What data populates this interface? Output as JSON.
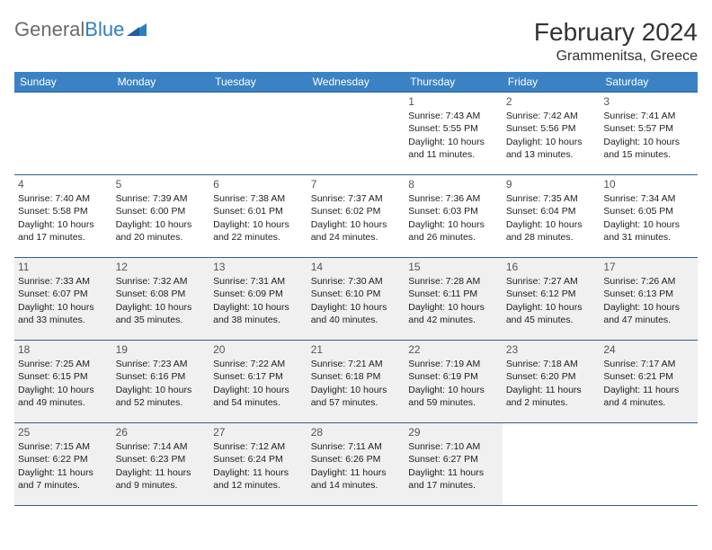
{
  "logo": {
    "text1": "General",
    "text2": "Blue"
  },
  "title": "February 2024",
  "location": "Grammenitsa, Greece",
  "colors": {
    "header_bg": "#3b82c4",
    "header_text": "#ffffff",
    "border": "#2f5f8f",
    "shaded_bg": "#f0f0f0",
    "text": "#222222",
    "logo_gray": "#6b6b6b",
    "logo_blue": "#2f7fbf"
  },
  "weekdays": [
    "Sunday",
    "Monday",
    "Tuesday",
    "Wednesday",
    "Thursday",
    "Friday",
    "Saturday"
  ],
  "weeks": [
    [
      {
        "blank": true
      },
      {
        "blank": true
      },
      {
        "blank": true
      },
      {
        "blank": true
      },
      {
        "day": "1",
        "sunrise": "Sunrise: 7:43 AM",
        "sunset": "Sunset: 5:55 PM",
        "d1": "Daylight: 10 hours",
        "d2": "and 11 minutes."
      },
      {
        "day": "2",
        "sunrise": "Sunrise: 7:42 AM",
        "sunset": "Sunset: 5:56 PM",
        "d1": "Daylight: 10 hours",
        "d2": "and 13 minutes."
      },
      {
        "day": "3",
        "sunrise": "Sunrise: 7:41 AM",
        "sunset": "Sunset: 5:57 PM",
        "d1": "Daylight: 10 hours",
        "d2": "and 15 minutes."
      }
    ],
    [
      {
        "day": "4",
        "sunrise": "Sunrise: 7:40 AM",
        "sunset": "Sunset: 5:58 PM",
        "d1": "Daylight: 10 hours",
        "d2": "and 17 minutes."
      },
      {
        "day": "5",
        "sunrise": "Sunrise: 7:39 AM",
        "sunset": "Sunset: 6:00 PM",
        "d1": "Daylight: 10 hours",
        "d2": "and 20 minutes."
      },
      {
        "day": "6",
        "sunrise": "Sunrise: 7:38 AM",
        "sunset": "Sunset: 6:01 PM",
        "d1": "Daylight: 10 hours",
        "d2": "and 22 minutes."
      },
      {
        "day": "7",
        "sunrise": "Sunrise: 7:37 AM",
        "sunset": "Sunset: 6:02 PM",
        "d1": "Daylight: 10 hours",
        "d2": "and 24 minutes."
      },
      {
        "day": "8",
        "sunrise": "Sunrise: 7:36 AM",
        "sunset": "Sunset: 6:03 PM",
        "d1": "Daylight: 10 hours",
        "d2": "and 26 minutes."
      },
      {
        "day": "9",
        "sunrise": "Sunrise: 7:35 AM",
        "sunset": "Sunset: 6:04 PM",
        "d1": "Daylight: 10 hours",
        "d2": "and 28 minutes."
      },
      {
        "day": "10",
        "sunrise": "Sunrise: 7:34 AM",
        "sunset": "Sunset: 6:05 PM",
        "d1": "Daylight: 10 hours",
        "d2": "and 31 minutes."
      }
    ],
    [
      {
        "day": "11",
        "shaded": true,
        "sunrise": "Sunrise: 7:33 AM",
        "sunset": "Sunset: 6:07 PM",
        "d1": "Daylight: 10 hours",
        "d2": "and 33 minutes."
      },
      {
        "day": "12",
        "shaded": true,
        "sunrise": "Sunrise: 7:32 AM",
        "sunset": "Sunset: 6:08 PM",
        "d1": "Daylight: 10 hours",
        "d2": "and 35 minutes."
      },
      {
        "day": "13",
        "shaded": true,
        "sunrise": "Sunrise: 7:31 AM",
        "sunset": "Sunset: 6:09 PM",
        "d1": "Daylight: 10 hours",
        "d2": "and 38 minutes."
      },
      {
        "day": "14",
        "shaded": true,
        "sunrise": "Sunrise: 7:30 AM",
        "sunset": "Sunset: 6:10 PM",
        "d1": "Daylight: 10 hours",
        "d2": "and 40 minutes."
      },
      {
        "day": "15",
        "shaded": true,
        "sunrise": "Sunrise: 7:28 AM",
        "sunset": "Sunset: 6:11 PM",
        "d1": "Daylight: 10 hours",
        "d2": "and 42 minutes."
      },
      {
        "day": "16",
        "shaded": true,
        "sunrise": "Sunrise: 7:27 AM",
        "sunset": "Sunset: 6:12 PM",
        "d1": "Daylight: 10 hours",
        "d2": "and 45 minutes."
      },
      {
        "day": "17",
        "shaded": true,
        "sunrise": "Sunrise: 7:26 AM",
        "sunset": "Sunset: 6:13 PM",
        "d1": "Daylight: 10 hours",
        "d2": "and 47 minutes."
      }
    ],
    [
      {
        "day": "18",
        "shaded": true,
        "sunrise": "Sunrise: 7:25 AM",
        "sunset": "Sunset: 6:15 PM",
        "d1": "Daylight: 10 hours",
        "d2": "and 49 minutes."
      },
      {
        "day": "19",
        "shaded": true,
        "sunrise": "Sunrise: 7:23 AM",
        "sunset": "Sunset: 6:16 PM",
        "d1": "Daylight: 10 hours",
        "d2": "and 52 minutes."
      },
      {
        "day": "20",
        "shaded": true,
        "sunrise": "Sunrise: 7:22 AM",
        "sunset": "Sunset: 6:17 PM",
        "d1": "Daylight: 10 hours",
        "d2": "and 54 minutes."
      },
      {
        "day": "21",
        "shaded": true,
        "sunrise": "Sunrise: 7:21 AM",
        "sunset": "Sunset: 6:18 PM",
        "d1": "Daylight: 10 hours",
        "d2": "and 57 minutes."
      },
      {
        "day": "22",
        "shaded": true,
        "sunrise": "Sunrise: 7:19 AM",
        "sunset": "Sunset: 6:19 PM",
        "d1": "Daylight: 10 hours",
        "d2": "and 59 minutes."
      },
      {
        "day": "23",
        "shaded": true,
        "sunrise": "Sunrise: 7:18 AM",
        "sunset": "Sunset: 6:20 PM",
        "d1": "Daylight: 11 hours",
        "d2": "and 2 minutes."
      },
      {
        "day": "24",
        "shaded": true,
        "sunrise": "Sunrise: 7:17 AM",
        "sunset": "Sunset: 6:21 PM",
        "d1": "Daylight: 11 hours",
        "d2": "and 4 minutes."
      }
    ],
    [
      {
        "day": "25",
        "shaded": true,
        "sunrise": "Sunrise: 7:15 AM",
        "sunset": "Sunset: 6:22 PM",
        "d1": "Daylight: 11 hours",
        "d2": "and 7 minutes."
      },
      {
        "day": "26",
        "shaded": true,
        "sunrise": "Sunrise: 7:14 AM",
        "sunset": "Sunset: 6:23 PM",
        "d1": "Daylight: 11 hours",
        "d2": "and 9 minutes."
      },
      {
        "day": "27",
        "shaded": true,
        "sunrise": "Sunrise: 7:12 AM",
        "sunset": "Sunset: 6:24 PM",
        "d1": "Daylight: 11 hours",
        "d2": "and 12 minutes."
      },
      {
        "day": "28",
        "shaded": true,
        "sunrise": "Sunrise: 7:11 AM",
        "sunset": "Sunset: 6:26 PM",
        "d1": "Daylight: 11 hours",
        "d2": "and 14 minutes."
      },
      {
        "day": "29",
        "shaded": true,
        "sunrise": "Sunrise: 7:10 AM",
        "sunset": "Sunset: 6:27 PM",
        "d1": "Daylight: 11 hours",
        "d2": "and 17 minutes."
      },
      {
        "blank": true
      },
      {
        "blank": true
      }
    ]
  ]
}
